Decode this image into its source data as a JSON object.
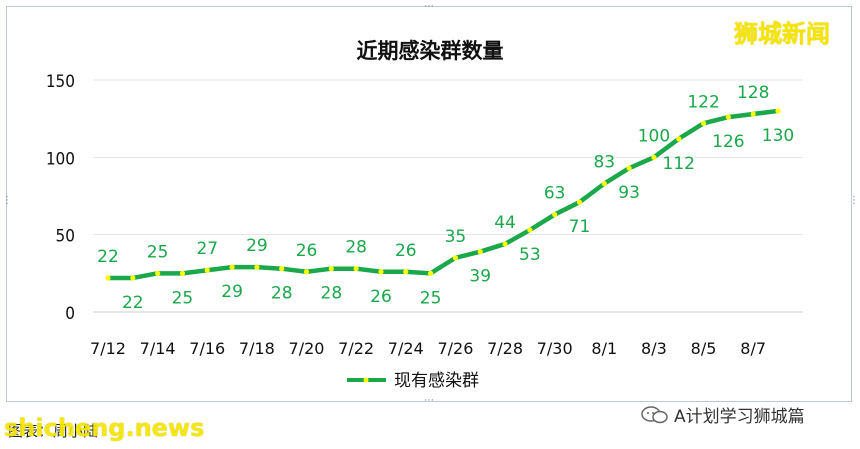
{
  "watermark_top": "狮城新闻",
  "caption": "图表：周小陆",
  "brand_bottom": "shicheng.news",
  "wechat_account": "A计划学习狮城篇",
  "colors": {
    "line": "#1aa84a",
    "marker": "#ffff00",
    "label": "#1aa84a",
    "grid": "#e3e3e3"
  },
  "chart_data": {
    "type": "line",
    "title": "近期感染群数量",
    "xlabel": "",
    "ylabel": "",
    "ylim": [
      0,
      150
    ],
    "yticks": [
      0,
      50,
      100,
      150
    ],
    "x": [
      "7/12",
      "7/13",
      "7/14",
      "7/15",
      "7/16",
      "7/17",
      "7/18",
      "7/19",
      "7/20",
      "7/21",
      "7/22",
      "7/23",
      "7/24",
      "7/25",
      "7/26",
      "7/27",
      "7/28",
      "7/29",
      "7/30",
      "7/31",
      "8/1",
      "8/2",
      "8/3",
      "8/4",
      "8/5",
      "8/6",
      "8/7",
      "8/8"
    ],
    "xtick_labels": [
      "7/12",
      "7/14",
      "7/16",
      "7/18",
      "7/20",
      "7/22",
      "7/24",
      "7/26",
      "7/28",
      "7/30",
      "8/1",
      "8/3",
      "8/5",
      "8/7"
    ],
    "grid": true,
    "legend": "bottom",
    "series": [
      {
        "name": "现有感染群",
        "values": [
          22,
          22,
          25,
          25,
          27,
          29,
          29,
          28,
          26,
          28,
          28,
          26,
          26,
          25,
          35,
          39,
          44,
          53,
          63,
          71,
          83,
          93,
          100,
          112,
          122,
          126,
          128,
          130
        ]
      }
    ]
  }
}
